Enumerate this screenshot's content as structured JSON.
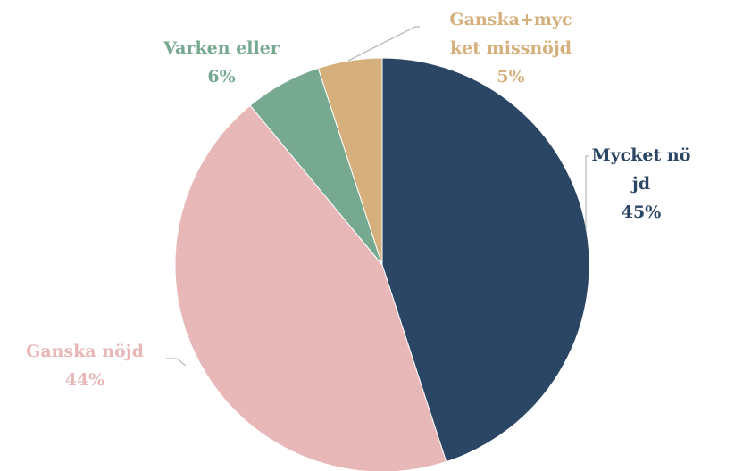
{
  "chart_data": {
    "type": "pie",
    "categories": [
      "Mycket nöjd",
      "Ganska nöjd",
      "Varken eller",
      "Ganska+mycket missnöjd"
    ],
    "values": [
      45,
      44,
      6,
      5
    ],
    "value_labels": [
      "45%",
      "44%",
      "6%",
      "5%"
    ],
    "colors": [
      "#2b4665",
      "#e8b7b7",
      "#76a990",
      "#d6b07c"
    ]
  }
}
